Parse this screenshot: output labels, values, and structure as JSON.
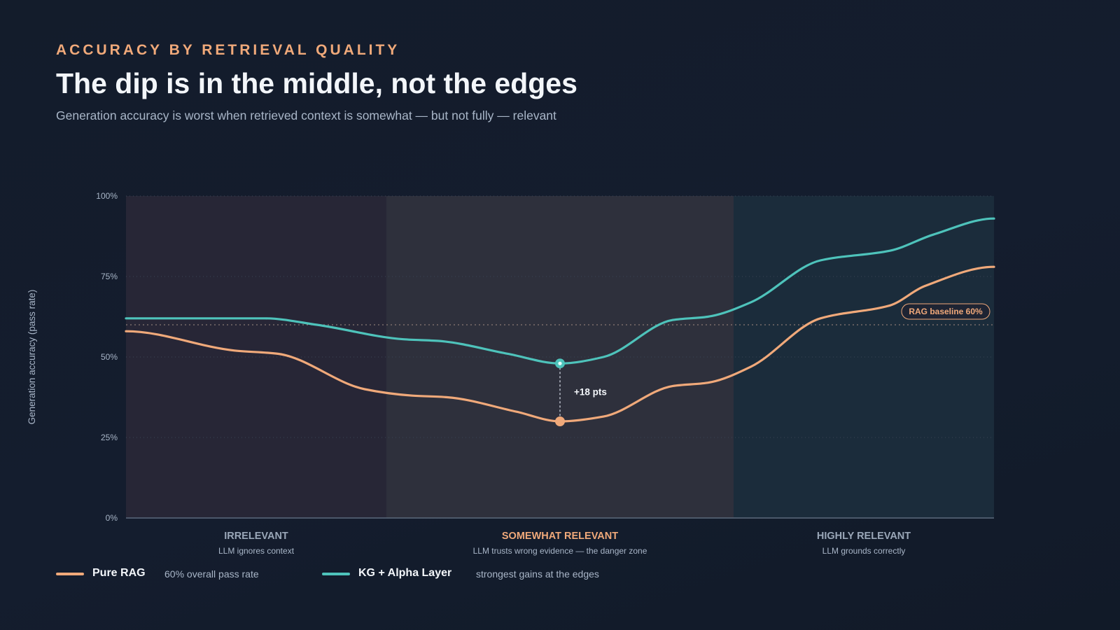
{
  "header": {
    "eyebrow": "ACCURACY BY RETRIEVAL QUALITY",
    "title": "The dip is in the middle, not the edges",
    "subtitle": "Generation accuracy is worst when retrieved context is somewhat — but not fully — relevant"
  },
  "legend": [
    {
      "name": "Pure RAG",
      "note": "60% overall pass rate",
      "color": "#f0a97a"
    },
    {
      "name": "KG + Alpha Layer",
      "note": "strongest gains at the edges",
      "color": "#4ec3bb"
    }
  ],
  "chart_data": {
    "type": "line",
    "ylabel": "Generation accuracy (pass rate)",
    "ylim": [
      0,
      100
    ],
    "y_ticks": [
      {
        "value": 0,
        "label": "0%"
      },
      {
        "value": 25,
        "label": "25%"
      },
      {
        "value": 50,
        "label": "50%"
      },
      {
        "value": 75,
        "label": "75%"
      },
      {
        "value": 100,
        "label": "100%"
      }
    ],
    "xlim": [
      0,
      100
    ],
    "grid": true,
    "zones": [
      {
        "label": "IRRELEVANT",
        "sublabel": "LLM ignores context",
        "from": 0,
        "to": 30,
        "fill": "#272636",
        "label_color": "#9aa7b8"
      },
      {
        "label": "SOMEWHAT RELEVANT",
        "sublabel": "LLM trusts wrong evidence — the danger zone",
        "from": 30,
        "to": 70,
        "fill": "#2e303c",
        "label_color": "#f0a97a"
      },
      {
        "label": "HIGHLY RELEVANT",
        "sublabel": "LLM grounds correctly",
        "from": 70,
        "to": 100,
        "fill": "#1b2c3b",
        "label_color": "#9aa7b8"
      }
    ],
    "series": [
      {
        "name": "Pure RAG",
        "color": "#f0a97a",
        "x": [
          0,
          12.5,
          17.5,
          27.5,
          33,
          37,
          45,
          50,
          55,
          63,
          67,
          72,
          80,
          88,
          92,
          100
        ],
        "y": [
          58,
          52,
          51,
          40,
          38,
          37.5,
          33,
          30,
          31.5,
          41,
          42,
          47,
          62,
          66,
          72,
          78
        ]
      },
      {
        "name": "KG + Alpha Layer",
        "color": "#4ec3bb",
        "x": [
          0,
          16,
          22,
          32,
          36,
          44,
          50,
          55,
          63,
          67,
          72,
          80,
          88,
          93,
          100
        ],
        "y": [
          62,
          62,
          60,
          55.5,
          55,
          51,
          48,
          50,
          61.5,
          62.5,
          67,
          80,
          83,
          88,
          93
        ]
      }
    ],
    "baseline": {
      "value": 60,
      "label": "RAG baseline 60%"
    },
    "gap_annotation": {
      "x": 50,
      "from": 30,
      "to": 48,
      "label": "+18 pts"
    }
  }
}
